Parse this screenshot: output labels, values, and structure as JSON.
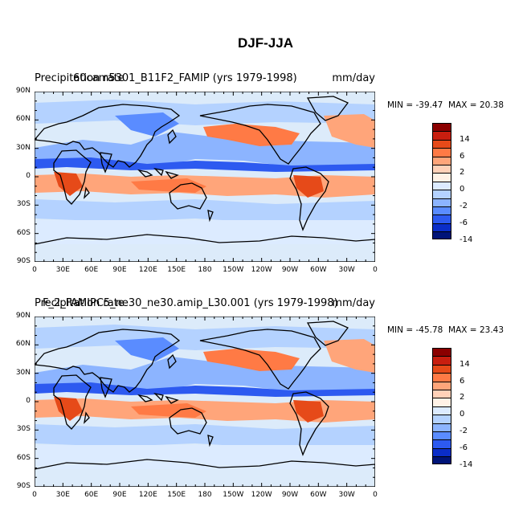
{
  "figure": {
    "title": "DJF-JJA",
    "lat_ticks": [
      "90N",
      "60N",
      "30N",
      "0",
      "30S",
      "60S",
      "90S"
    ],
    "lon_ticks": [
      "0",
      "30E",
      "60E",
      "90E",
      "120E",
      "150E",
      "180",
      "150W",
      "120W",
      "90W",
      "60W",
      "30W",
      "0"
    ],
    "colorbar_labels": [
      "14",
      "6",
      "2",
      "0",
      "-2",
      "-6",
      "-14"
    ],
    "colorbar_colors": [
      "#8b0000",
      "#c81e0f",
      "#e64a19",
      "#ff7a45",
      "#ffa57a",
      "#ffd1b8",
      "#fff2e6",
      "#dcebff",
      "#b4d2ff",
      "#8cb4ff",
      "#5a8cff",
      "#2d5af0",
      "#0a2dc8",
      "#001478"
    ],
    "colors": {
      "coast": "#000000",
      "positive": "#f08050",
      "negative": "#6f96ff",
      "neutral": "#dcebfa"
    }
  },
  "panels": [
    {
      "title_left": "Precipitation rate",
      "title_center": "60cam5301_B11F2_FAMIP (yrs 1979-1998)",
      "title_right": "mm/day",
      "min_label": "MIN = ",
      "min_value": "-39.47",
      "max_label": "MAX = ",
      "max_value": "20.38"
    },
    {
      "title_left": "Precipitation rate",
      "title_center": "F_2_FAMIPC5_ne30_ne30.amip_L30.001 (yrs 1979-1998)",
      "title_right": "mm/day",
      "min_label": "MIN = ",
      "min_value": "-45.78",
      "max_label": "MAX = ",
      "max_value": "23.43"
    }
  ]
}
